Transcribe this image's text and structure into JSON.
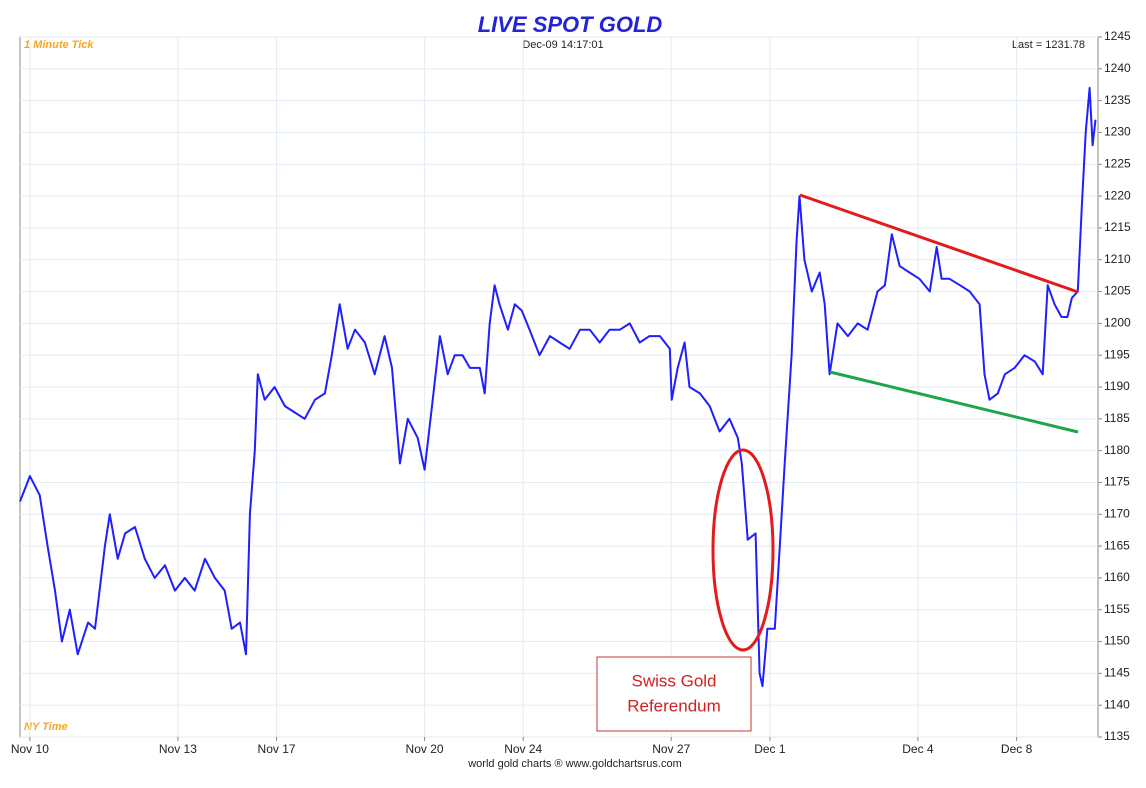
{
  "chart_data": {
    "type": "line",
    "title": "LIVE SPOT GOLD",
    "subtitle": "Dec-09  14:17:01",
    "corner_labels": {
      "top_left": "1 Minute Tick",
      "top_right": "Last = 1231.78",
      "bottom_left": "NY Time"
    },
    "footer": "world gold charts ® www.goldchartsrus.com",
    "annotation": [
      "Swiss Gold",
      "Referendum"
    ],
    "x": [
      -0.2,
      0,
      0.2,
      0.36,
      0.51,
      0.65,
      0.81,
      0.97,
      1.18,
      1.32,
      1.52,
      1.62,
      1.78,
      1.93,
      2.13,
      2.33,
      2.53,
      2.74,
      2.94,
      3.14,
      3.34,
      3.55,
      3.75,
      3.95,
      4.09,
      4.26,
      4.38,
      4.46,
      4.56,
      4.62,
      4.76,
      4.96,
      5.17,
      5.37,
      5.57,
      5.78,
      5.98,
      6.12,
      6.28,
      6.44,
      6.59,
      6.79,
      6.99,
      7.19,
      7.34,
      7.5,
      7.66,
      7.86,
      8.0,
      8.15,
      8.31,
      8.47,
      8.61,
      8.77,
      8.92,
      9.12,
      9.22,
      9.32,
      9.42,
      9.52,
      9.69,
      9.83,
      9.97,
      10.13,
      10.33,
      10.54,
      10.74,
      10.94,
      11.15,
      11.35,
      11.55,
      11.75,
      11.96,
      12.16,
      12.36,
      12.56,
      12.77,
      12.97,
      13.01,
      13.13,
      13.27,
      13.37,
      13.58,
      13.78,
      13.98,
      14.18,
      14.35,
      14.43,
      14.49,
      14.55,
      14.71,
      14.79,
      14.85,
      14.95,
      15.1,
      15.2,
      15.3,
      15.44,
      15.54,
      15.6,
      15.7,
      15.85,
      16.01,
      16.11,
      16.21,
      16.37,
      16.58,
      16.78,
      16.98,
      17.18,
      17.33,
      17.47,
      17.63,
      17.83,
      18.03,
      18.24,
      18.38,
      18.48,
      18.64,
      18.85,
      19.05,
      19.25,
      19.35,
      19.45,
      19.62,
      19.76,
      19.96,
      20.16,
      20.37,
      20.53,
      20.63,
      20.77,
      20.91,
      21.03,
      21.12,
      21.24,
      21.32,
      21.4,
      21.48,
      21.54,
      21.6
    ],
    "series": [
      {
        "name": "Spot Gold",
        "color": "#1f1fff",
        "values": [
          1172,
          1176,
          1173,
          1165,
          1158,
          1150,
          1155,
          1148,
          1153,
          1152,
          1165,
          1170,
          1163,
          1167,
          1168,
          1163,
          1160,
          1162,
          1158,
          1160,
          1158,
          1163,
          1160,
          1158,
          1152,
          1153,
          1148,
          1170,
          1180,
          1192,
          1188,
          1190,
          1187,
          1186,
          1185,
          1188,
          1189,
          1195,
          1203,
          1196,
          1199,
          1197,
          1192,
          1198,
          1193,
          1178,
          1185,
          1182,
          1177,
          1187,
          1198,
          1192,
          1195,
          1195,
          1193,
          1193,
          1189,
          1200,
          1206,
          1203,
          1199,
          1203,
          1202,
          1199,
          1195,
          1198,
          1197,
          1196,
          1199,
          1199,
          1197,
          1199,
          1199,
          1200,
          1197,
          1198,
          1198,
          1196,
          1188,
          1193,
          1197,
          1190,
          1189,
          1187,
          1183,
          1185,
          1182,
          1178,
          1172,
          1166,
          1167,
          1145,
          1143,
          1152,
          1152,
          1165,
          1178,
          1195,
          1213,
          1220,
          1210,
          1205,
          1208,
          1203,
          1192,
          1200,
          1198,
          1200,
          1199,
          1205,
          1206,
          1214,
          1209,
          1208,
          1207,
          1205,
          1212,
          1207,
          1207,
          1206,
          1205,
          1203,
          1192,
          1188,
          1189,
          1192,
          1193,
          1195,
          1194,
          1192,
          1206,
          1203,
          1201,
          1201,
          1204,
          1205,
          1218,
          1230,
          1237,
          1228,
          1232
        ]
      }
    ],
    "xlim": [
      -0.2,
      21.65
    ],
    "xticks": [
      {
        "value": 0,
        "label": "Nov 10"
      },
      {
        "value": 3,
        "label": "Nov 13"
      },
      {
        "value": 5,
        "label": "Nov 17"
      },
      {
        "value": 8,
        "label": "Nov 20"
      },
      {
        "value": 10,
        "label": "Nov 24"
      },
      {
        "value": 13,
        "label": "Nov 27"
      },
      {
        "value": 15,
        "label": "Dec 1"
      },
      {
        "value": 18,
        "label": "Dec 4"
      },
      {
        "value": 20,
        "label": "Dec 8"
      }
    ],
    "ylim": [
      1135,
      1245
    ],
    "yticks": [
      1135,
      1140,
      1145,
      1150,
      1155,
      1160,
      1165,
      1170,
      1175,
      1180,
      1185,
      1190,
      1195,
      1200,
      1205,
      1210,
      1215,
      1220,
      1225,
      1230,
      1235,
      1240,
      1245
    ],
    "grid": true
  }
}
